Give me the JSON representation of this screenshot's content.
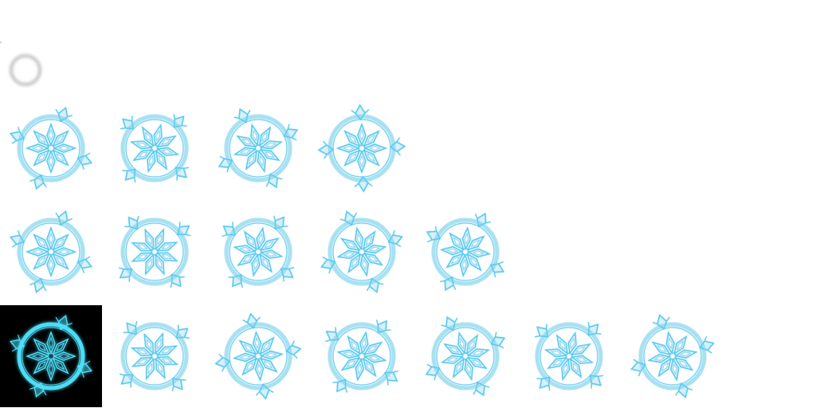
{
  "sheet": {
    "background": "#ffffff",
    "ring_color": "#cfcfcf",
    "frame_stroke": "#8fd8ef",
    "frame_stroke_strong": "#5cc9ee",
    "glow_bg": "#000000",
    "glow_stroke": "#4fe3ff"
  },
  "rows": [
    {
      "row_name": "row-1",
      "frames": [
        {
          "rot": 0
        },
        {
          "rot": 15
        },
        {
          "rot": 30
        },
        {
          "rot": 45
        }
      ]
    },
    {
      "row_name": "row-2",
      "frames": [
        {
          "rot": 0
        },
        {
          "rot": 22
        },
        {
          "rot": 11
        },
        {
          "rot": 33
        },
        {
          "rot": 5
        }
      ]
    },
    {
      "row_name": "row-3",
      "frames": [
        {
          "rot": 0,
          "glow": true
        },
        {
          "rot": 20
        },
        {
          "rot": 40
        },
        {
          "rot": 10
        },
        {
          "rot": 30
        },
        {
          "rot": 15
        },
        {
          "rot": 35
        }
      ]
    }
  ]
}
